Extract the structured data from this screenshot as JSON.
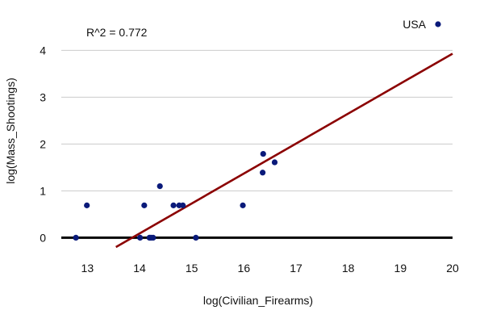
{
  "chart_data": {
    "type": "scatter",
    "xlabel": "log(Civilian_Firearms)",
    "ylabel": "log(Mass_Shootings)",
    "xlim": [
      12.5,
      20
    ],
    "ylim": [
      -0.2,
      4.3
    ],
    "xticks": [
      13,
      14,
      15,
      16,
      17,
      18,
      19,
      20
    ],
    "yticks": [
      0,
      1,
      2,
      3,
      4
    ],
    "grid": {
      "horizontal": true,
      "vertical": false
    },
    "annotation": "R^2 =  0.772",
    "legend": {
      "placement": "top-right",
      "entries": [
        "USA"
      ]
    },
    "series": [
      {
        "name": "USA",
        "x": [
          12.78,
          12.99,
          14.01,
          14.09,
          14.19,
          14.22,
          14.26,
          14.39,
          14.65,
          14.76,
          14.83,
          15.08,
          15.98,
          16.36,
          16.37,
          16.59
        ],
        "y": [
          0.0,
          0.69,
          0.0,
          0.69,
          0.0,
          0.0,
          0.0,
          1.1,
          0.69,
          0.69,
          0.69,
          0.0,
          0.69,
          1.39,
          1.79,
          1.61
        ],
        "color": "#0a1a7a"
      }
    ],
    "fit_line": {
      "slope": 0.64,
      "intercept": -8.87,
      "color": "#8b0000"
    },
    "zero_line_color": "#000000",
    "grid_color": "#cccccc"
  }
}
